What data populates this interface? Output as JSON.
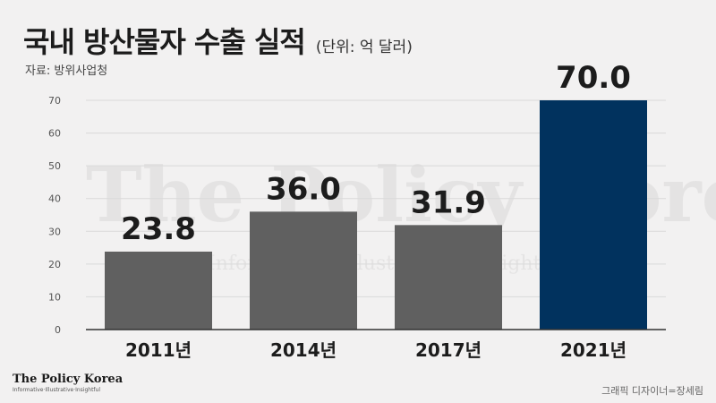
{
  "header": {
    "title": "국내 방산물자 수출 실적",
    "unit": "(단위: 억 달러)",
    "source": "자료: 방위사업청"
  },
  "watermark": {
    "text": "The Policy Korea",
    "subtext": "Informative · Illustrative · Insightful"
  },
  "footer": {
    "brand": "The Policy Korea",
    "tagline": "Informative·Illustrative·Insightful",
    "credit": "그래픽 디자이너=장세림"
  },
  "chart_data": {
    "type": "bar",
    "categories": [
      "2011년",
      "2014년",
      "2017년",
      "2021년"
    ],
    "values": [
      23.8,
      36.0,
      31.9,
      70.0
    ],
    "value_labels": [
      "23.8",
      "36.0",
      "31.9",
      "70.0"
    ],
    "ylim": [
      0,
      70
    ],
    "yticks": [
      0,
      10,
      20,
      30,
      40,
      50,
      60,
      70
    ],
    "grid": true,
    "colors": [
      "#606060",
      "#606060",
      "#606060",
      "#01325e"
    ],
    "gridline_color": "#d9d9d9"
  }
}
